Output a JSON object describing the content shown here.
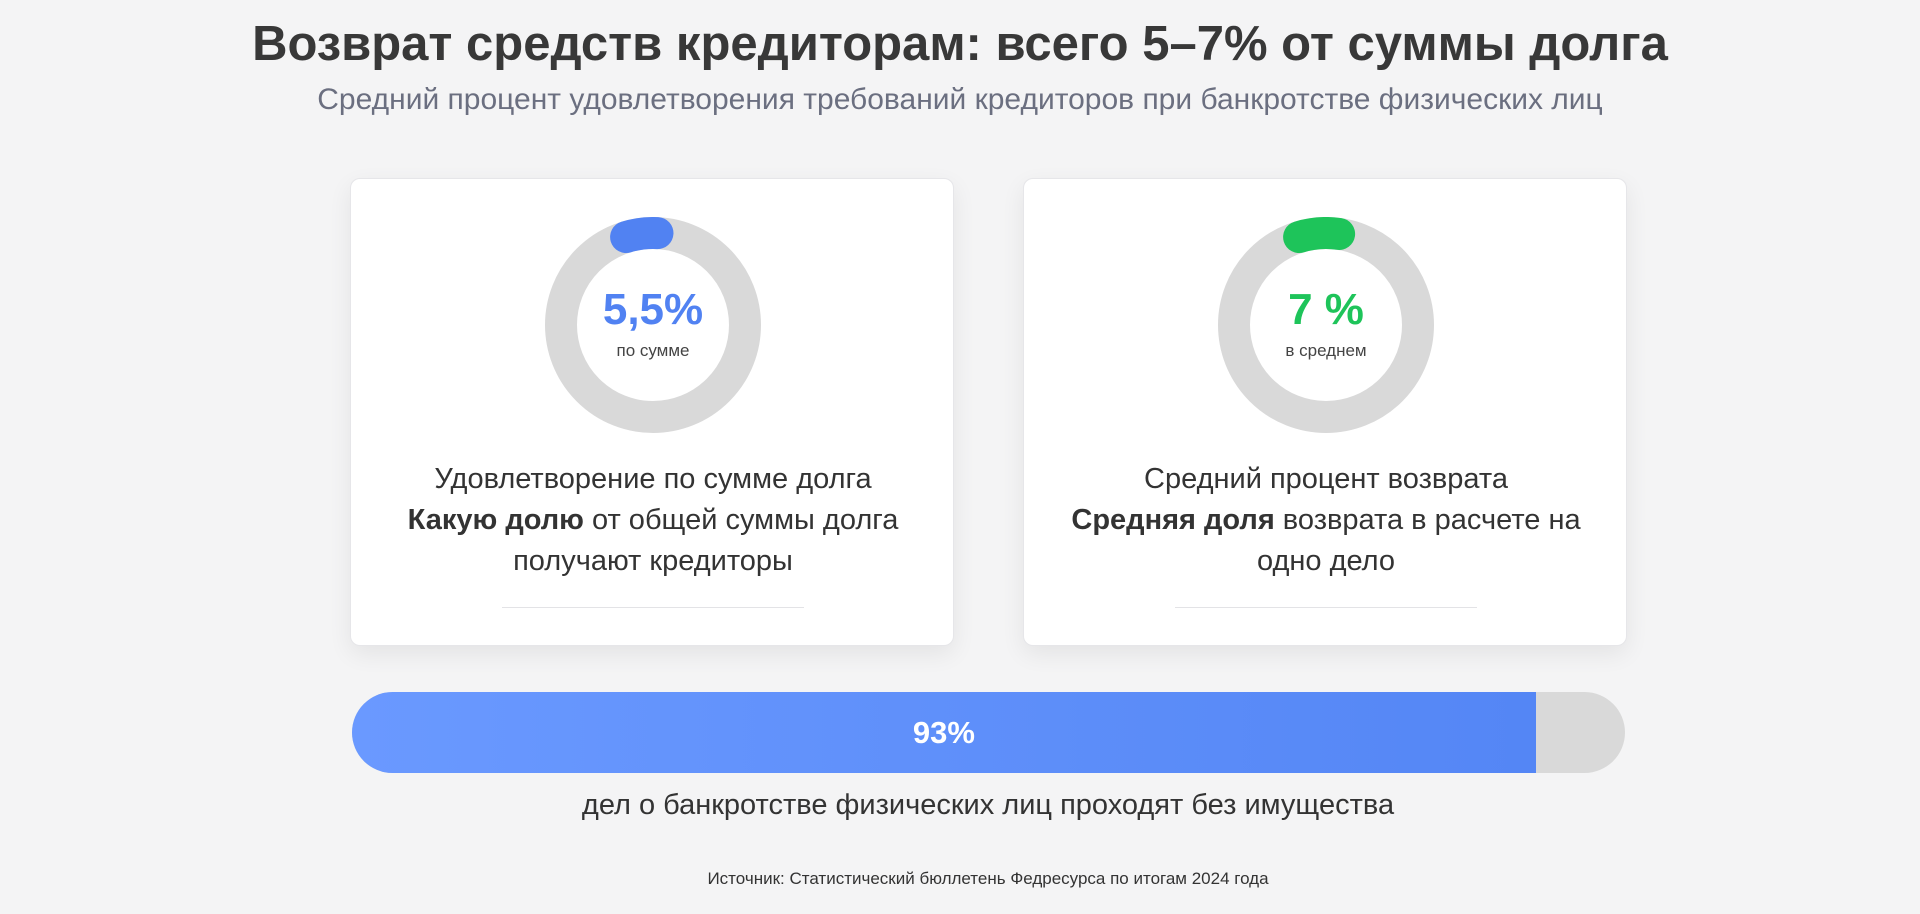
{
  "title": "Возврат средств кредиторам: всего 5–7% от суммы долга",
  "subtitle": "Средний процент удовлетворения требований кредиторов при банкротстве физических лиц",
  "cards": [
    {
      "value_label": "5,5%",
      "caption": "по сумме",
      "heading": "Удовлетворение по сумме долга",
      "bold_text": "Какую долю",
      "rest_text": " от общей суммы долга получают кредиторы",
      "color": "#5182f2"
    },
    {
      "value_label": "7 %",
      "caption": "в среднем",
      "heading": "Средний процент возврата",
      "bold_text": "Средняя доля",
      "rest_text": " возврата в расчете на одно дело",
      "color": "#1ec45a"
    }
  ],
  "bar": {
    "label": "93%",
    "caption": "дел о банкротстве физических лиц проходят без имущества"
  },
  "source": "Источник: Статистический бюллетень Федресурса по итогам 2024 года",
  "colors": {
    "track": "#d9d9d9",
    "bar_start": "#6a99ff",
    "bar_end": "#5486f5"
  },
  "chart_data": [
    {
      "type": "pie",
      "variant": "donut",
      "value": 5.5,
      "unit": "%",
      "max": 100,
      "label": "5,5%",
      "caption": "по сумме"
    },
    {
      "type": "pie",
      "variant": "donut",
      "value": 7,
      "unit": "%",
      "max": 100,
      "label": "7 %",
      "caption": "в среднем"
    },
    {
      "type": "bar",
      "variant": "progress",
      "value": 93,
      "unit": "%",
      "max": 100,
      "label": "93%",
      "caption": "дел о банкротстве физических лиц проходят без имущества"
    }
  ]
}
